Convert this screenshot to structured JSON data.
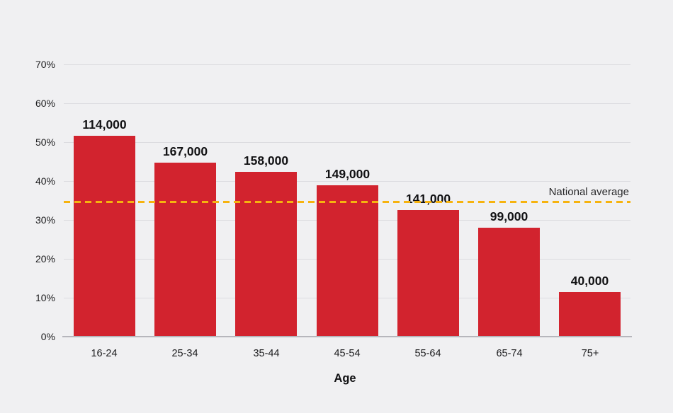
{
  "chart_data": {
    "type": "bar",
    "title": "",
    "xlabel": "Age",
    "ylabel": "",
    "categories": [
      "16-24",
      "25-34",
      "35-44",
      "45-54",
      "55-64",
      "65-74",
      "75+"
    ],
    "series": [
      {
        "name": "count-by-age",
        "values_percent": [
          51.6,
          44.7,
          42.4,
          38.9,
          32.5,
          28.0,
          11.5
        ],
        "data_labels": [
          "114,000",
          "167,000",
          "158,000",
          "149,000",
          "141,000",
          "99,000",
          "40,000"
        ]
      }
    ],
    "y_ticks": [
      "0%",
      "10%",
      "20%",
      "30%",
      "40%",
      "50%",
      "60%",
      "70%"
    ],
    "ylim": [
      0,
      70
    ],
    "grid": true,
    "legend": "none",
    "reference_line": {
      "label": "National average",
      "value_percent": 34.7,
      "style": "dashed"
    },
    "colors": {
      "bar": "#d2232e",
      "reference_line": "#f6b30f",
      "background": "#f0f0f2",
      "gridline": "#dcdce0",
      "axis_line": "#b6b6bc",
      "text": "#1c1c1e"
    }
  }
}
